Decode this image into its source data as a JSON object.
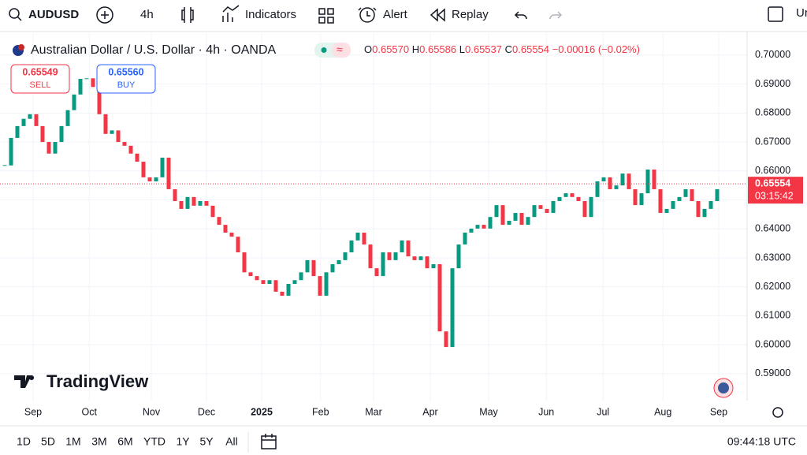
{
  "toolbar": {
    "symbol": "AUDUSD",
    "interval": "4h",
    "buttons": [
      "Indicators",
      "Alert",
      "Replay"
    ],
    "cut_label": "Ur"
  },
  "legend": {
    "title": "Australian Dollar / U.S. Dollar · 4h · OANDA",
    "ohlc": [
      {
        "letter": "O",
        "value": "0.65570"
      },
      {
        "letter": "H",
        "value": "0.65586"
      },
      {
        "letter": "L",
        "value": "0.65537"
      },
      {
        "letter": "C",
        "value": "0.65554"
      }
    ],
    "change": "−0.00016 (−0.02%)",
    "sell": {
      "price": "0.65549",
      "label": "SELL"
    },
    "buy": {
      "price": "0.65560",
      "label": "BUY"
    }
  },
  "chart_data": {
    "type": "candlestick",
    "values": [
      0.6619,
      0.6714,
      0.6755,
      0.678,
      0.6796,
      0.6755,
      0.67,
      0.666,
      0.67,
      0.6755,
      0.681,
      0.6864,
      0.6918,
      0.692,
      0.689,
      0.6796,
      0.6728,
      0.674,
      0.67,
      0.6687,
      0.666,
      0.6632,
      0.6578,
      0.6564,
      0.6578,
      0.6646,
      0.6537,
      0.6496,
      0.6469,
      0.651,
      0.648,
      0.6496,
      0.648,
      0.6441,
      0.6414,
      0.6387,
      0.6373,
      0.6319,
      0.625,
      0.6237,
      0.6223,
      0.621,
      0.6223,
      0.6183,
      0.6169,
      0.621,
      0.6223,
      0.625,
      0.6292,
      0.6237,
      0.6169,
      0.625,
      0.6278,
      0.6292,
      0.6319,
      0.636,
      0.6387,
      0.6346,
      0.6264,
      0.6237,
      0.6319,
      0.6292,
      0.6319,
      0.636,
      0.6305,
      0.6292,
      0.6305,
      0.6264,
      0.6278,
      0.6046,
      0.5992,
      0.6264,
      0.6346,
      0.6387,
      0.6401,
      0.6414,
      0.6401,
      0.6441,
      0.6482,
      0.6414,
      0.6428,
      0.6455,
      0.6414,
      0.6441,
      0.6482,
      0.6469,
      0.6455,
      0.6496,
      0.651,
      0.6523,
      0.651,
      0.6496,
      0.6441,
      0.651,
      0.6564,
      0.6578,
      0.6537,
      0.655,
      0.6591,
      0.6537,
      0.6482,
      0.6523,
      0.6605,
      0.6537,
      0.6455,
      0.6469,
      0.6496,
      0.651,
      0.6537,
      0.6496,
      0.6441,
      0.6469,
      0.6496,
      0.6537
    ],
    "up_color": "#089981",
    "down_color": "#f23645",
    "xlim": [
      -0.75,
      117.75
    ],
    "xticks": [
      {
        "value": 4.5,
        "label": "Sep"
      },
      {
        "value": 13.4,
        "label": "Oct"
      },
      {
        "value": 23.25,
        "label": "Nov"
      },
      {
        "value": 32,
        "label": "Dec"
      },
      {
        "value": 40.75,
        "label": "2025"
      },
      {
        "value": 50.1,
        "label": "Feb"
      },
      {
        "value": 58.5,
        "label": "Mar"
      },
      {
        "value": 67.5,
        "label": "Apr"
      },
      {
        "value": 76.75,
        "label": "May"
      },
      {
        "value": 85.9,
        "label": "Jun"
      },
      {
        "value": 94.9,
        "label": "Jul"
      },
      {
        "value": 104.4,
        "label": "Aug"
      },
      {
        "value": 113.25,
        "label": "Sep"
      }
    ],
    "ylim": [
      0.5807,
      0.7076
    ],
    "yticks": [
      {
        "value": 0.7,
        "label": "0.70000"
      },
      {
        "value": 0.69,
        "label": "0.69000"
      },
      {
        "value": 0.68,
        "label": "0.68000"
      },
      {
        "value": 0.67,
        "label": "0.67000"
      },
      {
        "value": 0.66,
        "label": "0.66000"
      },
      {
        "value": 0.65,
        "label": "0.65000"
      },
      {
        "value": 0.64,
        "label": "0.64000"
      },
      {
        "value": 0.63,
        "label": "0.63000"
      },
      {
        "value": 0.62,
        "label": "0.62000"
      },
      {
        "value": 0.61,
        "label": "0.61000"
      },
      {
        "value": 0.6,
        "label": "0.60000"
      },
      {
        "value": 0.59,
        "label": "0.59000"
      }
    ],
    "grid": true,
    "last_price": {
      "value": 0.65554,
      "label": "0.65554",
      "countdown": "03:15:42",
      "color": "#f23645"
    }
  },
  "branding": "TradingView",
  "footer": {
    "ranges": [
      "1D",
      "5D",
      "1M",
      "3M",
      "6M",
      "YTD",
      "1Y",
      "5Y",
      "All"
    ],
    "clock": "09:44:18 UTC"
  }
}
